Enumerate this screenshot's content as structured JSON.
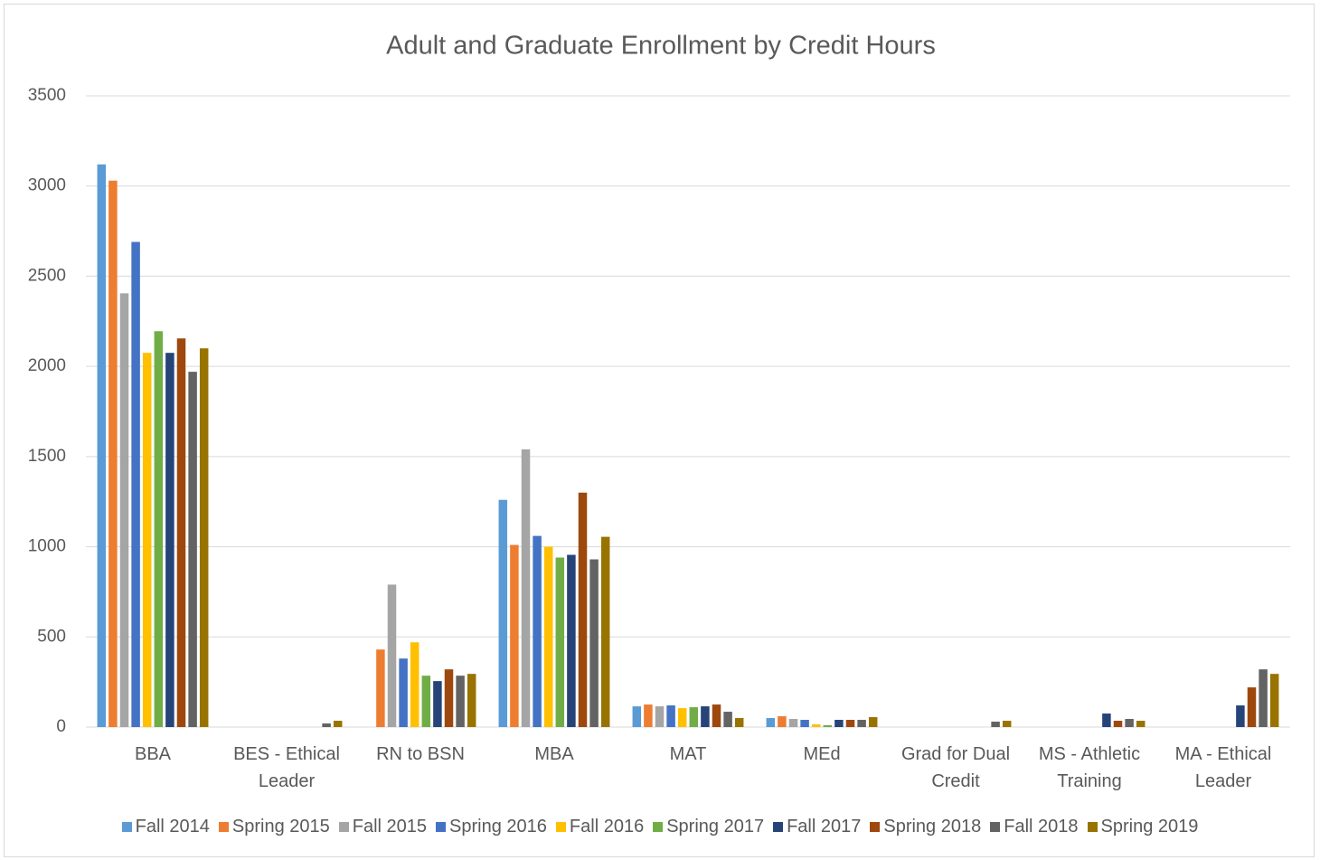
{
  "chart_data": {
    "type": "bar",
    "title": "Adult and Graduate Enrollment by Credit Hours",
    "categories": [
      "BBA",
      "BES - Ethical Leader",
      "RN to BSN",
      "MBA",
      "MAT",
      "MEd",
      "Grad for Dual Credit",
      "MS - Athletic Training",
      "MA - Ethical Leader"
    ],
    "series": [
      {
        "name": "Fall 2014",
        "color": "#5b9bd5",
        "values": [
          3120,
          null,
          null,
          1260,
          115,
          50,
          null,
          null,
          null
        ]
      },
      {
        "name": "Spring 2015",
        "color": "#ed7d31",
        "values": [
          3030,
          null,
          430,
          1010,
          125,
          60,
          null,
          null,
          null
        ]
      },
      {
        "name": "Fall 2015",
        "color": "#a5a5a5",
        "values": [
          2405,
          null,
          790,
          1540,
          115,
          45,
          null,
          null,
          null
        ]
      },
      {
        "name": "Spring 2016",
        "color": "#4472c4",
        "values": [
          2690,
          null,
          380,
          1060,
          120,
          40,
          null,
          null,
          null
        ]
      },
      {
        "name": "Fall 2016",
        "color": "#ffc000",
        "values": [
          2075,
          null,
          470,
          1000,
          105,
          15,
          null,
          null,
          null
        ]
      },
      {
        "name": "Spring 2017",
        "color": "#70ad47",
        "values": [
          2195,
          null,
          285,
          940,
          110,
          10,
          null,
          null,
          null
        ]
      },
      {
        "name": "Fall 2017",
        "color": "#264478",
        "values": [
          2075,
          null,
          255,
          955,
          115,
          40,
          null,
          75,
          120
        ]
      },
      {
        "name": "Spring 2018",
        "color": "#9e480e",
        "values": [
          2155,
          null,
          320,
          1300,
          125,
          40,
          null,
          35,
          220
        ]
      },
      {
        "name": "Fall 2018",
        "color": "#636363",
        "values": [
          1970,
          20,
          285,
          930,
          85,
          40,
          30,
          45,
          320
        ]
      },
      {
        "name": "Spring 2019",
        "color": "#997300",
        "values": [
          2100,
          35,
          295,
          1055,
          50,
          55,
          35,
          35,
          295
        ]
      }
    ],
    "ylim": [
      0,
      3500
    ],
    "yticks": [
      0,
      500,
      1000,
      1500,
      2000,
      2500,
      3000,
      3500
    ],
    "grid": true,
    "legend": "bottom"
  }
}
